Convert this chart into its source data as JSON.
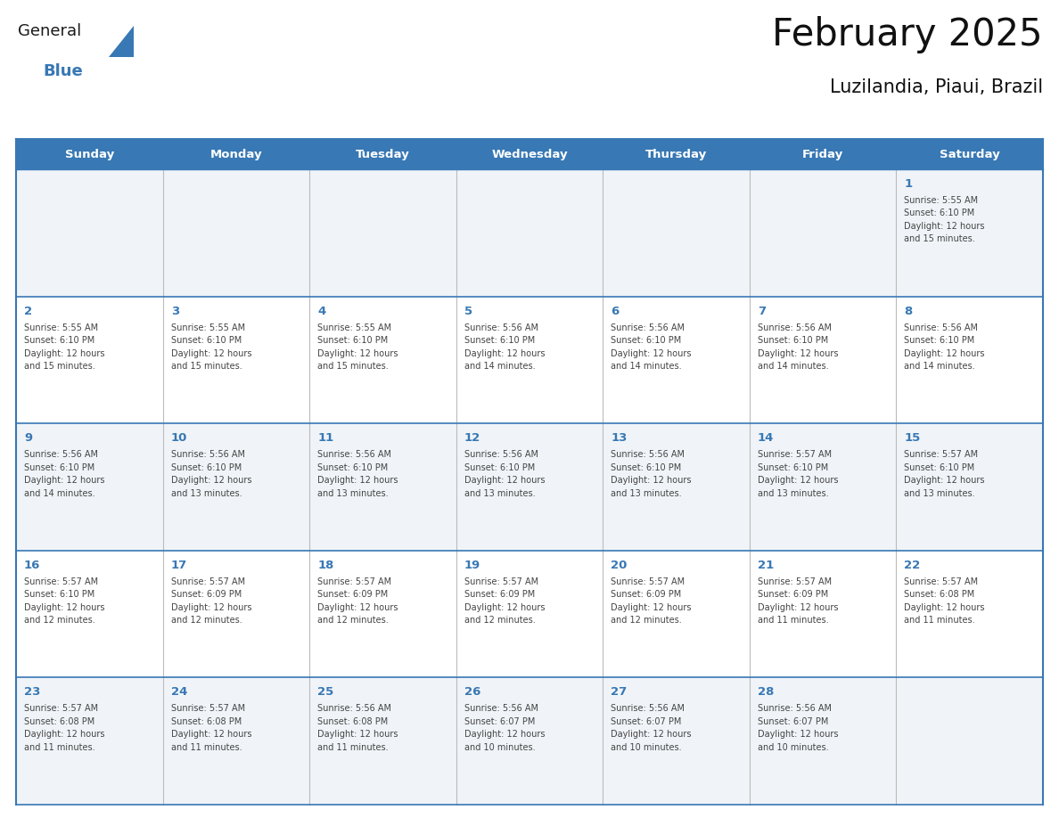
{
  "title": "February 2025",
  "subtitle": "Luzilandia, Piaui, Brazil",
  "header_color": "#3878b4",
  "header_text_color": "#ffffff",
  "border_color": "#3878b4",
  "day_number_color": "#3878b4",
  "cell_text_color": "#444444",
  "row_bg_odd": "#f0f4f8",
  "row_bg_even": "#ffffff",
  "days_of_week": [
    "Sunday",
    "Monday",
    "Tuesday",
    "Wednesday",
    "Thursday",
    "Friday",
    "Saturday"
  ],
  "weeks": [
    [
      {
        "day": "",
        "info": ""
      },
      {
        "day": "",
        "info": ""
      },
      {
        "day": "",
        "info": ""
      },
      {
        "day": "",
        "info": ""
      },
      {
        "day": "",
        "info": ""
      },
      {
        "day": "",
        "info": ""
      },
      {
        "day": "1",
        "info": "Sunrise: 5:55 AM\nSunset: 6:10 PM\nDaylight: 12 hours\nand 15 minutes."
      }
    ],
    [
      {
        "day": "2",
        "info": "Sunrise: 5:55 AM\nSunset: 6:10 PM\nDaylight: 12 hours\nand 15 minutes."
      },
      {
        "day": "3",
        "info": "Sunrise: 5:55 AM\nSunset: 6:10 PM\nDaylight: 12 hours\nand 15 minutes."
      },
      {
        "day": "4",
        "info": "Sunrise: 5:55 AM\nSunset: 6:10 PM\nDaylight: 12 hours\nand 15 minutes."
      },
      {
        "day": "5",
        "info": "Sunrise: 5:56 AM\nSunset: 6:10 PM\nDaylight: 12 hours\nand 14 minutes."
      },
      {
        "day": "6",
        "info": "Sunrise: 5:56 AM\nSunset: 6:10 PM\nDaylight: 12 hours\nand 14 minutes."
      },
      {
        "day": "7",
        "info": "Sunrise: 5:56 AM\nSunset: 6:10 PM\nDaylight: 12 hours\nand 14 minutes."
      },
      {
        "day": "8",
        "info": "Sunrise: 5:56 AM\nSunset: 6:10 PM\nDaylight: 12 hours\nand 14 minutes."
      }
    ],
    [
      {
        "day": "9",
        "info": "Sunrise: 5:56 AM\nSunset: 6:10 PM\nDaylight: 12 hours\nand 14 minutes."
      },
      {
        "day": "10",
        "info": "Sunrise: 5:56 AM\nSunset: 6:10 PM\nDaylight: 12 hours\nand 13 minutes."
      },
      {
        "day": "11",
        "info": "Sunrise: 5:56 AM\nSunset: 6:10 PM\nDaylight: 12 hours\nand 13 minutes."
      },
      {
        "day": "12",
        "info": "Sunrise: 5:56 AM\nSunset: 6:10 PM\nDaylight: 12 hours\nand 13 minutes."
      },
      {
        "day": "13",
        "info": "Sunrise: 5:56 AM\nSunset: 6:10 PM\nDaylight: 12 hours\nand 13 minutes."
      },
      {
        "day": "14",
        "info": "Sunrise: 5:57 AM\nSunset: 6:10 PM\nDaylight: 12 hours\nand 13 minutes."
      },
      {
        "day": "15",
        "info": "Sunrise: 5:57 AM\nSunset: 6:10 PM\nDaylight: 12 hours\nand 13 minutes."
      }
    ],
    [
      {
        "day": "16",
        "info": "Sunrise: 5:57 AM\nSunset: 6:10 PM\nDaylight: 12 hours\nand 12 minutes."
      },
      {
        "day": "17",
        "info": "Sunrise: 5:57 AM\nSunset: 6:09 PM\nDaylight: 12 hours\nand 12 minutes."
      },
      {
        "day": "18",
        "info": "Sunrise: 5:57 AM\nSunset: 6:09 PM\nDaylight: 12 hours\nand 12 minutes."
      },
      {
        "day": "19",
        "info": "Sunrise: 5:57 AM\nSunset: 6:09 PM\nDaylight: 12 hours\nand 12 minutes."
      },
      {
        "day": "20",
        "info": "Sunrise: 5:57 AM\nSunset: 6:09 PM\nDaylight: 12 hours\nand 12 minutes."
      },
      {
        "day": "21",
        "info": "Sunrise: 5:57 AM\nSunset: 6:09 PM\nDaylight: 12 hours\nand 11 minutes."
      },
      {
        "day": "22",
        "info": "Sunrise: 5:57 AM\nSunset: 6:08 PM\nDaylight: 12 hours\nand 11 minutes."
      }
    ],
    [
      {
        "day": "23",
        "info": "Sunrise: 5:57 AM\nSunset: 6:08 PM\nDaylight: 12 hours\nand 11 minutes."
      },
      {
        "day": "24",
        "info": "Sunrise: 5:57 AM\nSunset: 6:08 PM\nDaylight: 12 hours\nand 11 minutes."
      },
      {
        "day": "25",
        "info": "Sunrise: 5:56 AM\nSunset: 6:08 PM\nDaylight: 12 hours\nand 11 minutes."
      },
      {
        "day": "26",
        "info": "Sunrise: 5:56 AM\nSunset: 6:07 PM\nDaylight: 12 hours\nand 10 minutes."
      },
      {
        "day": "27",
        "info": "Sunrise: 5:56 AM\nSunset: 6:07 PM\nDaylight: 12 hours\nand 10 minutes."
      },
      {
        "day": "28",
        "info": "Sunrise: 5:56 AM\nSunset: 6:07 PM\nDaylight: 12 hours\nand 10 minutes."
      },
      {
        "day": "",
        "info": ""
      }
    ]
  ],
  "logo_text_general": "General",
  "logo_text_blue": "Blue",
  "logo_color_general": "#1a1a1a",
  "logo_color_blue": "#3878b4",
  "logo_triangle_color": "#3878b4"
}
